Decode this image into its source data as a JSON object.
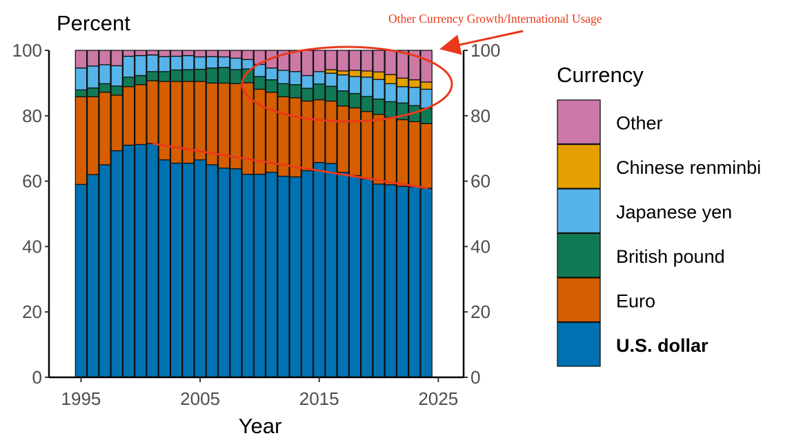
{
  "chart_data": {
    "type": "bar",
    "stacked": true,
    "title": "",
    "ylabel": "Percent",
    "xlabel": "Year",
    "ylim": [
      0,
      100
    ],
    "xlim": [
      1992,
      2026
    ],
    "x_ticks": [
      1995,
      2005,
      2015,
      2025
    ],
    "y_ticks": [
      0,
      20,
      40,
      60,
      80,
      100
    ],
    "y_axis_both_sides": true,
    "grid": false,
    "legend_position": "right",
    "legend_title": "Currency",
    "x": [
      1995,
      1996,
      1997,
      1998,
      1999,
      2000,
      2001,
      2002,
      2003,
      2004,
      2005,
      2006,
      2007,
      2008,
      2009,
      2010,
      2011,
      2012,
      2013,
      2014,
      2015,
      2016,
      2017,
      2018,
      2019,
      2020,
      2021,
      2022,
      2023,
      2024
    ],
    "series": [
      {
        "name": "U.S. dollar",
        "color": "#0072b2",
        "values": [
          59,
          62,
          65,
          69.3,
          71,
          71.2,
          71.5,
          66.5,
          65.5,
          65.5,
          66.5,
          65,
          64,
          63.8,
          62.1,
          62.1,
          62.7,
          61.5,
          61.3,
          63.2,
          65.7,
          65.4,
          62.7,
          61.7,
          60.7,
          59.1,
          58.9,
          58.4,
          58.3,
          57.8
        ]
      },
      {
        "name": "Euro",
        "color": "#d55e00",
        "values": [
          26.8,
          23.8,
          22.2,
          17,
          17.9,
          18.3,
          19.2,
          24,
          25,
          25,
          24,
          25,
          26,
          26,
          28,
          26,
          24.5,
          24.3,
          24.2,
          21.3,
          19.2,
          19.1,
          20.3,
          20.7,
          20.6,
          21.3,
          20.6,
          20.4,
          19.9,
          19.8
        ]
      },
      {
        "name": "British pound",
        "color": "#117a55",
        "values": [
          2.1,
          2.7,
          2.6,
          2.8,
          2.9,
          2.8,
          2.8,
          3,
          3.5,
          3.6,
          3.7,
          4.6,
          4.8,
          4.3,
          4.2,
          3.9,
          3.8,
          4,
          4,
          3.9,
          4.8,
          4.5,
          4.6,
          4.4,
          4.6,
          4.7,
          4.8,
          5.1,
          4.9,
          4.7
        ]
      },
      {
        "name": "Japanese yen",
        "color": "#56b4e9",
        "values": [
          6.7,
          6.7,
          5.8,
          6.2,
          6.4,
          6.1,
          5.1,
          4.6,
          4.2,
          4.3,
          3.8,
          3.5,
          3.2,
          3.5,
          2.9,
          3.7,
          3.6,
          4.1,
          4,
          3.9,
          3.8,
          4,
          4.9,
          5.2,
          5.9,
          6,
          5.5,
          5,
          5.6,
          5.8
        ]
      },
      {
        "name": "Chinese renminbi",
        "color": "#e69f00",
        "values": [
          0,
          0,
          0,
          0,
          0,
          0,
          0,
          0,
          0,
          0,
          0,
          0,
          0,
          0,
          0,
          0,
          0,
          0,
          0,
          0,
          0,
          1.1,
          1.2,
          1.9,
          1.9,
          2.3,
          2.8,
          2.6,
          2.3,
          2.2
        ]
      },
      {
        "name": "Other",
        "color": "#cc79a7",
        "values": [
          5.4,
          4.8,
          4.4,
          4.7,
          1.8,
          1.6,
          1.4,
          1.9,
          1.8,
          1.6,
          2,
          1.9,
          2,
          2.4,
          2.8,
          4.3,
          5.4,
          6.1,
          6.5,
          7.7,
          6.5,
          5.9,
          6.3,
          6.1,
          6.3,
          6.6,
          7.4,
          8.5,
          9,
          9.7
        ]
      }
    ],
    "legend_order": [
      "Other",
      "Chinese renminbi",
      "Japanese yen",
      "British pound",
      "Euro",
      "U.S. dollar"
    ],
    "legend_bold": "U.S. dollar",
    "annotation": {
      "text": "Other Currency Growth/International Usage",
      "color": "#e8391a",
      "trend_line": {
        "from": {
          "x": 2001,
          "y": 71.5
        },
        "to": {
          "x": 2024,
          "y": 57.8
        }
      }
    }
  }
}
